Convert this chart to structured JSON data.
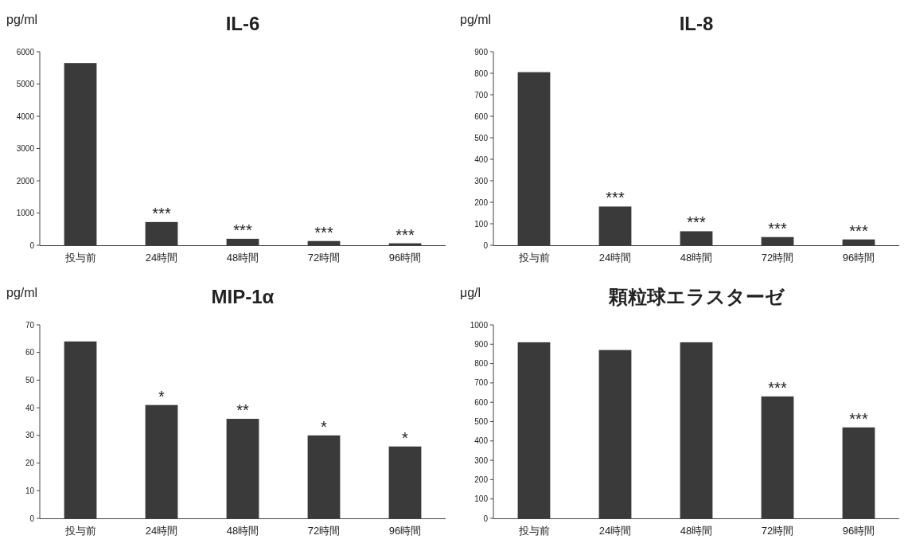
{
  "chart_data": [
    {
      "type": "bar",
      "title": "IL-6",
      "ylabel": "pg/ml",
      "categories": [
        "投与前",
        "24時間",
        "48時間",
        "72時間",
        "96時間"
      ],
      "values": [
        5650,
        720,
        200,
        130,
        60
      ],
      "color": "#3a3a3a",
      "ylim": [
        0,
        6000
      ],
      "yticks": [
        0,
        1000,
        2000,
        3000,
        4000,
        5000,
        6000
      ],
      "annotations": [
        {
          "text": "***",
          "x": "24時間",
          "y": 720
        },
        {
          "text": "***",
          "x": "48時間",
          "y": 200
        },
        {
          "text": "***",
          "x": "72時間",
          "y": 130
        },
        {
          "text": "***",
          "x": "96時間",
          "y": 60
        }
      ]
    },
    {
      "type": "bar",
      "title": "IL-8",
      "ylabel": "pg/ml",
      "categories": [
        "投与前",
        "24時間",
        "48時間",
        "72時間",
        "96時間"
      ],
      "values": [
        805,
        180,
        65,
        38,
        27
      ],
      "color": "#3a3a3a",
      "ylim": [
        0,
        900
      ],
      "yticks": [
        0,
        100,
        200,
        300,
        400,
        500,
        600,
        700,
        800,
        900
      ],
      "annotations": [
        {
          "text": "***",
          "x": "24時間",
          "y": 180
        },
        {
          "text": "***",
          "x": "48時間",
          "y": 65
        },
        {
          "text": "***",
          "x": "72時間",
          "y": 38
        },
        {
          "text": "***",
          "x": "96時間",
          "y": 27
        }
      ]
    },
    {
      "type": "bar",
      "title": "MIP-1α",
      "ylabel": "pg/ml",
      "categories": [
        "投与前",
        "24時間",
        "48時間",
        "72時間",
        "96時間"
      ],
      "values": [
        64,
        41,
        36,
        30,
        26
      ],
      "color": "#3a3a3a",
      "ylim": [
        0,
        70
      ],
      "yticks": [
        0,
        10,
        20,
        30,
        40,
        50,
        60,
        70
      ],
      "annotations": [
        {
          "text": "*",
          "x": "24時間",
          "y": 41
        },
        {
          "text": "**",
          "x": "48時間",
          "y": 36
        },
        {
          "text": "*",
          "x": "72時間",
          "y": 30
        },
        {
          "text": "*",
          "x": "96時間",
          "y": 26
        }
      ]
    },
    {
      "type": "bar",
      "title": "顆粒球エラスターゼ",
      "ylabel": "μg/l",
      "categories": [
        "投与前",
        "24時間",
        "48時間",
        "72時間",
        "96時間"
      ],
      "values": [
        910,
        870,
        910,
        630,
        470
      ],
      "color": "#3a3a3a",
      "ylim": [
        0,
        1000
      ],
      "yticks": [
        0,
        100,
        200,
        300,
        400,
        500,
        600,
        700,
        800,
        900,
        1000
      ],
      "annotations": [
        {
          "text": "***",
          "x": "72時間",
          "y": 630
        },
        {
          "text": "***",
          "x": "96時間",
          "y": 470
        }
      ]
    }
  ]
}
